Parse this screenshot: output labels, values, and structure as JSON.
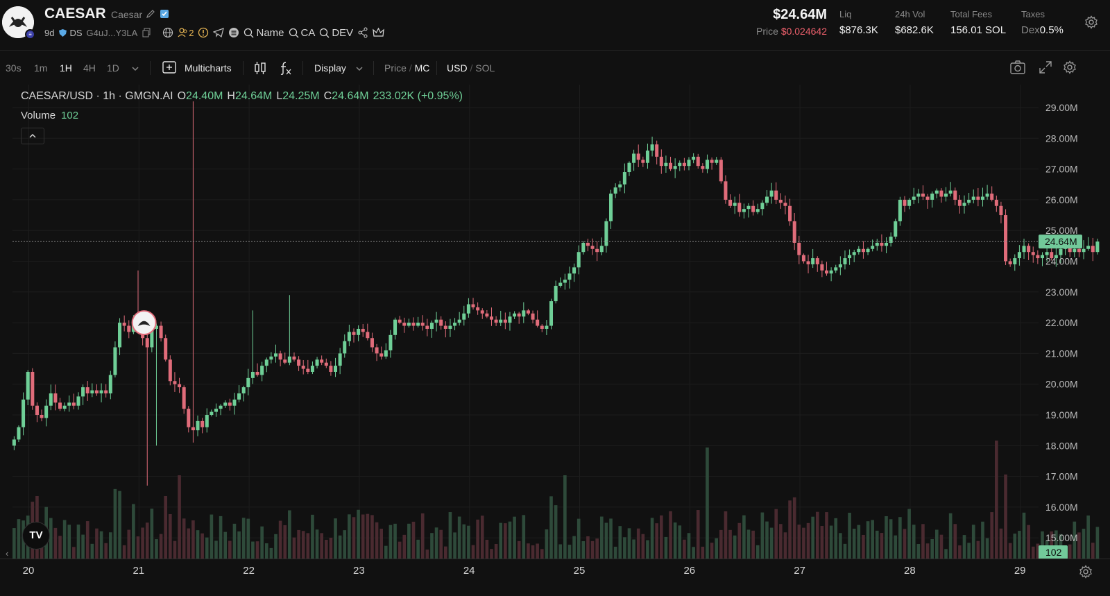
{
  "token": {
    "symbol": "CAESAR",
    "name": "Caesar",
    "age": "9d",
    "ds_label": "DS",
    "address_short": "G4uJ...Y3LA",
    "holders_count": "2",
    "search_links": [
      "Name",
      "CA",
      "DEV"
    ]
  },
  "stats": {
    "market_cap": "$24.64M",
    "price_label": "Price",
    "price": "$0.024642",
    "liq_label": "Liq",
    "liq": "$876.3K",
    "vol_label": "24h Vol",
    "vol": "$682.6K",
    "fees_label": "Total Fees",
    "fees": "156.01 SOL",
    "taxes_label": "Taxes",
    "taxes_dex_label": "Dex",
    "taxes": "0.5%"
  },
  "toolbar": {
    "intervals": [
      "30s",
      "1m",
      "1H",
      "4H",
      "1D"
    ],
    "active_interval": "1H",
    "multicharts": "Multicharts",
    "display": "Display",
    "price_label": "Price",
    "mc_label": "MC",
    "usd_label": "USD",
    "sol_label": "SOL"
  },
  "legend": {
    "pair": "CAESAR/USD · 1h · GMGN.AI",
    "o_label": "O",
    "o": "24.40M",
    "h_label": "H",
    "h": "24.64M",
    "l_label": "L",
    "l": "24.25M",
    "c_label": "C",
    "c": "24.64M",
    "change": "233.02K (+0.95%)",
    "volume_label": "Volume",
    "volume": "102"
  },
  "colors": {
    "up": "#6fcf97",
    "down": "#e06c7a",
    "background": "#111111",
    "price_tag": "#72c99a"
  },
  "chart_data": {
    "type": "candlestick",
    "unit": "market cap (USD)",
    "interval": "1h",
    "ylim": [
      14.6,
      29.4
    ],
    "y_ticks": [
      "15.00M",
      "16.00M",
      "17.00M",
      "18.00M",
      "19.00M",
      "20.00M",
      "21.00M",
      "22.00M",
      "23.00M",
      "24.00M",
      "25.00M",
      "26.00M",
      "27.00M",
      "28.00M",
      "29.00M"
    ],
    "y_tick_values": [
      15,
      16,
      17,
      18,
      19,
      20,
      21,
      22,
      23,
      24,
      25,
      26,
      27,
      28,
      29
    ],
    "x_ticks": [
      "20",
      "21",
      "22",
      "23",
      "24",
      "25",
      "26",
      "27",
      "28",
      "29"
    ],
    "x_tick_days": [
      20,
      21,
      22,
      23,
      24,
      25,
      26,
      27,
      28,
      29
    ],
    "first_day": 19.87,
    "current_value": 24.64,
    "current_label": "24.64M",
    "current_volume_label": "102",
    "grid": true,
    "annotation_icon": "caesar-avatar-marker",
    "close": [
      18.2,
      18.6,
      19.5,
      20.4,
      19.3,
      19.0,
      18.9,
      19.3,
      19.7,
      19.4,
      19.2,
      19.3,
      19.4,
      19.3,
      19.6,
      19.9,
      19.7,
      19.8,
      19.7,
      19.8,
      19.7,
      20.3,
      21.2,
      22.0,
      21.9,
      21.7,
      22.1,
      21.8,
      21.5,
      21.2,
      21.8,
      21.9,
      21.5,
      20.8,
      20.1,
      20.0,
      19.9,
      19.2,
      18.6,
      18.5,
      18.8,
      18.6,
      19.0,
      19.1,
      19.2,
      19.3,
      19.4,
      19.3,
      19.5,
      19.7,
      19.9,
      20.2,
      20.4,
      20.3,
      20.6,
      20.8,
      20.9,
      21.0,
      20.8,
      20.7,
      20.9,
      20.8,
      20.6,
      20.5,
      20.4,
      20.6,
      20.8,
      20.7,
      20.6,
      20.4,
      20.6,
      21.0,
      21.4,
      21.7,
      21.6,
      21.8,
      21.7,
      21.5,
      21.2,
      21.0,
      20.9,
      21.1,
      21.6,
      22.1,
      22.0,
      21.9,
      22.0,
      21.9,
      22.0,
      21.9,
      21.8,
      22.0,
      22.1,
      21.9,
      21.8,
      21.9,
      22.0,
      22.1,
      22.3,
      22.6,
      22.5,
      22.4,
      22.3,
      22.2,
      22.1,
      22.0,
      22.1,
      22.0,
      22.2,
      22.3,
      22.2,
      22.4,
      22.3,
      22.1,
      21.9,
      21.8,
      21.9,
      22.7,
      23.2,
      23.3,
      23.4,
      23.6,
      23.8,
      24.3,
      24.6,
      24.5,
      24.4,
      24.3,
      24.5,
      25.3,
      26.2,
      26.4,
      26.5,
      26.9,
      27.2,
      27.5,
      27.3,
      27.2,
      27.6,
      27.8,
      27.4,
      27.1,
      27.2,
      27.0,
      27.1,
      27.2,
      27.1,
      27.3,
      27.4,
      27.1,
      27.0,
      27.3,
      27.2,
      27.3,
      26.6,
      26.0,
      25.8,
      25.9,
      25.6,
      25.7,
      25.8,
      25.6,
      25.7,
      25.9,
      26.1,
      26.3,
      26.0,
      25.9,
      25.8,
      25.3,
      24.6,
      24.2,
      24.0,
      23.9,
      24.1,
      23.9,
      23.7,
      23.6,
      23.7,
      23.8,
      23.9,
      24.1,
      24.2,
      24.3,
      24.4,
      24.3,
      24.4,
      24.5,
      24.6,
      24.5,
      24.6,
      24.8,
      25.3,
      26.0,
      25.8,
      26.0,
      26.1,
      26.2,
      26.1,
      26.0,
      26.2,
      26.3,
      26.1,
      26.2,
      26.3,
      26.0,
      25.8,
      25.9,
      26.0,
      26.1,
      26.0,
      26.1,
      26.2,
      26.0,
      25.8,
      25.5,
      24.0,
      23.9,
      24.1,
      24.3,
      24.5,
      24.3,
      24.2,
      24.1,
      24.2,
      24.3,
      24.1,
      24.2,
      24.4,
      24.5,
      24.3,
      24.4,
      24.3,
      24.4,
      24.5,
      24.3,
      24.64
    ],
    "volume_scale_max": 500,
    "volume_note": "volume bars drawn on shared price pane bottom"
  }
}
